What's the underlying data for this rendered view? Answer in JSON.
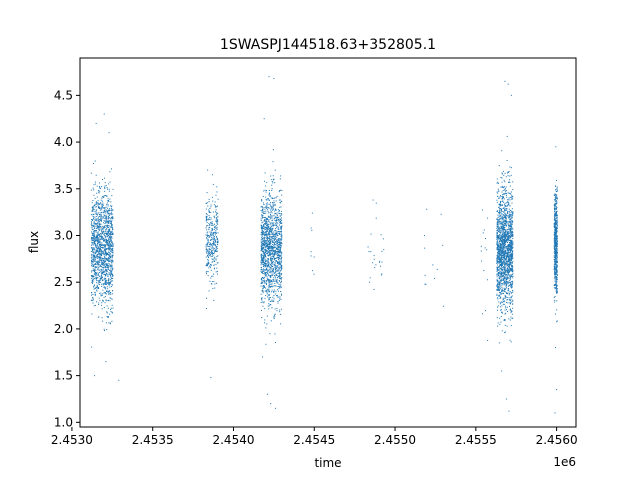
{
  "chart_data": {
    "type": "scatter",
    "title": "1SWASPJ144518.63+352805.1",
    "xlabel": "time",
    "ylabel": "flux",
    "x_offset_label": "1e6",
    "xlim": [
      2453050,
      2456120
    ],
    "ylim": [
      0.95,
      4.9
    ],
    "x_ticks": [
      2453000,
      2453500,
      2454000,
      2454500,
      2455000,
      2455500,
      2456000
    ],
    "x_tick_labels": [
      "2.4530",
      "2.4535",
      "2.4540",
      "2.4545",
      "2.4550",
      "2.4555",
      "2.4560"
    ],
    "y_ticks": [
      1.0,
      1.5,
      2.0,
      2.5,
      3.0,
      3.5,
      4.0,
      4.5
    ],
    "y_tick_labels": [
      "1.0",
      "1.5",
      "2.0",
      "2.5",
      "3.0",
      "3.5",
      "4.0",
      "4.5"
    ],
    "grid": false,
    "marker_color": "#1f77b4",
    "observing_seasons": [
      {
        "x_start": 2453120,
        "x_end": 2453255,
        "n_points": 1400,
        "y_center": 2.85,
        "y_spread": 0.3
      },
      {
        "x_start": 2453830,
        "x_end": 2453905,
        "n_points": 350,
        "y_center": 2.95,
        "y_spread": 0.22
      },
      {
        "x_start": 2454170,
        "x_end": 2454300,
        "n_points": 1400,
        "y_center": 2.85,
        "y_spread": 0.3
      },
      {
        "x_start": 2454480,
        "x_end": 2454500,
        "n_points": 8,
        "y_center": 2.8,
        "y_spread": 0.2
      },
      {
        "x_start": 2454820,
        "x_end": 2454930,
        "n_points": 25,
        "y_center": 2.8,
        "y_spread": 0.25
      },
      {
        "x_start": 2455170,
        "x_end": 2455310,
        "n_points": 12,
        "y_center": 2.75,
        "y_spread": 0.35
      },
      {
        "x_start": 2455530,
        "x_end": 2455580,
        "n_points": 15,
        "y_center": 2.6,
        "y_spread": 0.4
      },
      {
        "x_start": 2455630,
        "x_end": 2455730,
        "n_points": 1700,
        "y_center": 2.85,
        "y_spread": 0.32
      },
      {
        "x_start": 2455985,
        "x_end": 2456005,
        "n_points": 550,
        "y_center": 2.9,
        "y_spread": 0.28
      }
    ],
    "outliers": [
      [
        2453150,
        4.2
      ],
      [
        2453200,
        4.3
      ],
      [
        2453230,
        4.1
      ],
      [
        2453140,
        1.5
      ],
      [
        2453210,
        1.65
      ],
      [
        2453290,
        1.45
      ],
      [
        2453860,
        1.48
      ],
      [
        2453870,
        3.65
      ],
      [
        2453840,
        3.7
      ],
      [
        2454220,
        4.7
      ],
      [
        2454250,
        4.68
      ],
      [
        2454190,
        4.25
      ],
      [
        2454210,
        1.3
      ],
      [
        2454230,
        1.2
      ],
      [
        2454260,
        1.15
      ],
      [
        2454180,
        1.7
      ],
      [
        2455680,
        4.65
      ],
      [
        2455700,
        4.62
      ],
      [
        2455720,
        4.5
      ],
      [
        2455690,
        1.25
      ],
      [
        2455705,
        1.12
      ],
      [
        2455660,
        1.55
      ],
      [
        2455995,
        3.95
      ],
      [
        2455990,
        1.1
      ],
      [
        2456000,
        1.35
      ],
      [
        2455993,
        1.8
      ]
    ]
  }
}
